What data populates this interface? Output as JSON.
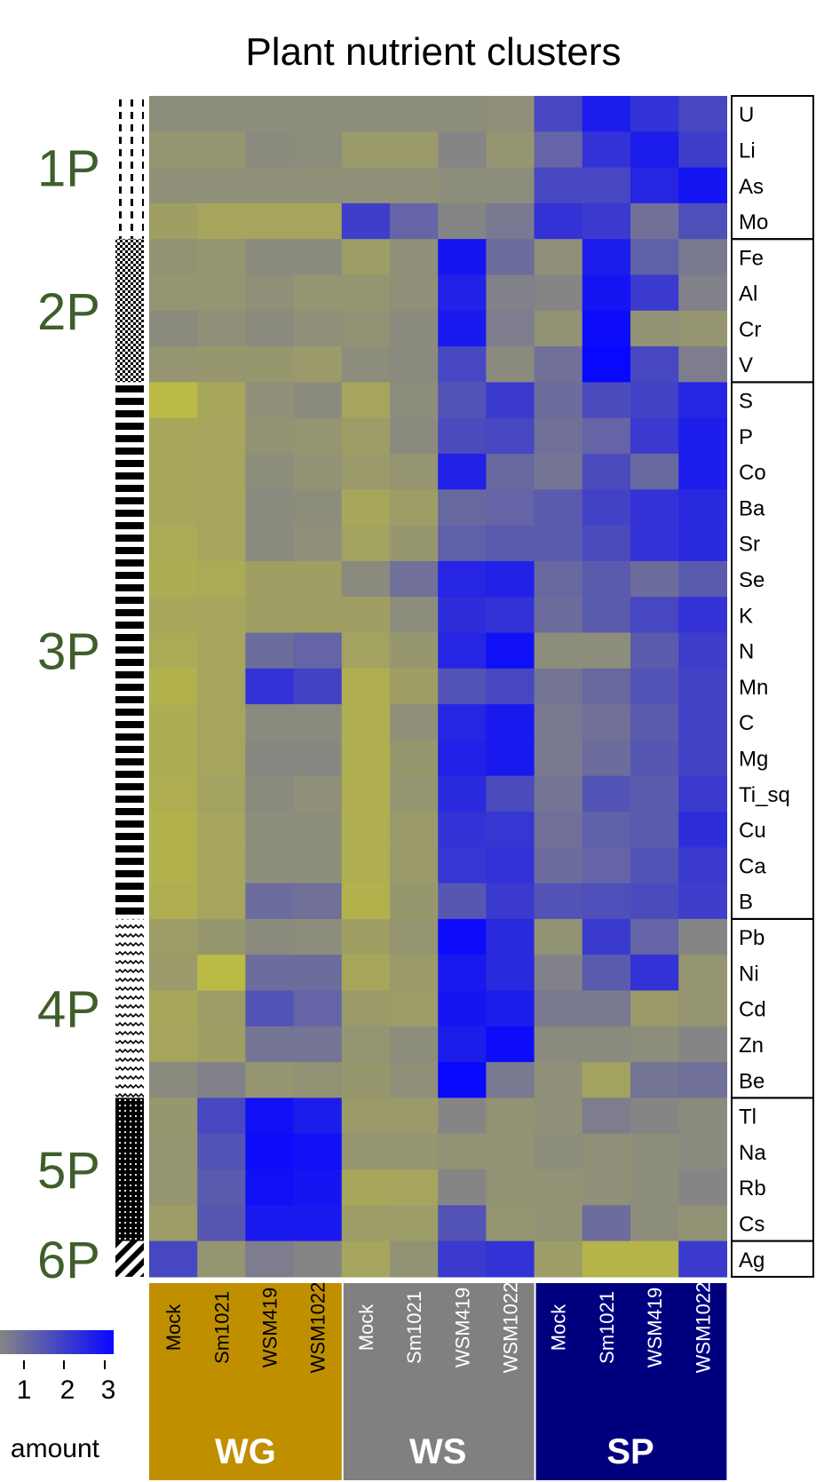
{
  "chart_data": {
    "type": "heatmap",
    "title": "Plant nutrient clusters",
    "rows": [
      "U",
      "Li",
      "As",
      "Mo",
      "Fe",
      "Al",
      "Cr",
      "V",
      "S",
      "P",
      "Co",
      "Ba",
      "Sr",
      "Se",
      "K",
      "N",
      "Mn",
      "C",
      "Mg",
      "Ti_sq",
      "Cu",
      "Ca",
      "B",
      "Pb",
      "Ni",
      "Cd",
      "Zn",
      "Be",
      "Tl",
      "Na",
      "Rb",
      "Cs",
      "Ag"
    ],
    "columns": [
      "Mock",
      "Sm1021",
      "WSM419",
      "WSM1022",
      "Mock",
      "Sm1021",
      "WSM419",
      "WSM1022",
      "Mock",
      "Sm1021",
      "WSM419",
      "WSM1022"
    ],
    "column_groups": [
      {
        "name": "WG",
        "span": 4,
        "color": "#bf8f00"
      },
      {
        "name": "WS",
        "span": 4,
        "color": "#808080"
      },
      {
        "name": "SP",
        "span": 4,
        "color": "#00007f"
      }
    ],
    "row_clusters": [
      {
        "name": "1P",
        "rows": 4,
        "pattern": "dashed"
      },
      {
        "name": "2P",
        "rows": 4,
        "pattern": "checker"
      },
      {
        "name": "3P",
        "rows": 15,
        "pattern": "horizontal-stripes"
      },
      {
        "name": "4P",
        "rows": 5,
        "pattern": "zigzag"
      },
      {
        "name": "5P",
        "rows": 4,
        "pattern": "dots"
      },
      {
        "name": "6P",
        "rows": 1,
        "pattern": "diagonal"
      }
    ],
    "values": [
      [
        -0.3,
        -0.3,
        -0.3,
        -0.3,
        -0.3,
        -0.3,
        -0.3,
        -0.4,
        1.5,
        2.5,
        2.0,
        1.5
      ],
      [
        -0.6,
        -0.6,
        -0.2,
        -0.3,
        -0.8,
        -0.8,
        0.0,
        -0.6,
        0.8,
        2.0,
        2.5,
        1.7
      ],
      [
        -0.4,
        -0.4,
        -0.4,
        -0.4,
        -0.4,
        -0.4,
        -0.3,
        -0.3,
        1.5,
        1.5,
        2.3,
        2.7
      ],
      [
        -1.0,
        -1.2,
        -1.2,
        -1.2,
        1.7,
        0.8,
        0.0,
        0.3,
        2.0,
        1.8,
        0.5,
        1.3
      ],
      [
        -0.5,
        -0.6,
        -0.2,
        -0.2,
        -0.9,
        -0.4,
        2.7,
        0.6,
        -0.4,
        2.5,
        0.9,
        0.3
      ],
      [
        -0.6,
        -0.6,
        -0.4,
        -0.6,
        -0.6,
        -0.4,
        2.4,
        0.1,
        0.0,
        2.7,
        1.8,
        0.1
      ],
      [
        -0.2,
        -0.4,
        -0.2,
        -0.4,
        -0.5,
        -0.2,
        2.6,
        0.2,
        -0.5,
        2.9,
        -0.5,
        -0.6
      ],
      [
        -0.6,
        -0.7,
        -0.7,
        -0.8,
        -0.3,
        -0.2,
        1.5,
        -0.2,
        0.5,
        3.0,
        1.5,
        0.2
      ],
      [
        -2.0,
        -1.3,
        -0.4,
        -0.2,
        -1.2,
        -0.3,
        1.2,
        1.8,
        0.6,
        1.4,
        1.6,
        2.3
      ],
      [
        -1.3,
        -1.2,
        -0.5,
        -0.6,
        -0.9,
        -0.2,
        1.4,
        1.5,
        0.5,
        0.8,
        1.8,
        2.5
      ],
      [
        -1.3,
        -1.2,
        -0.3,
        -0.5,
        -0.8,
        -0.6,
        2.4,
        0.7,
        0.4,
        1.4,
        0.7,
        2.5
      ],
      [
        -1.3,
        -1.2,
        -0.2,
        -0.3,
        -1.3,
        -0.9,
        0.7,
        0.8,
        1.0,
        1.6,
        2.0,
        2.2
      ],
      [
        -1.4,
        -1.2,
        -0.2,
        -0.4,
        -1.1,
        -0.7,
        0.9,
        1.0,
        1.0,
        1.4,
        2.0,
        2.2
      ],
      [
        -1.5,
        -1.4,
        -1.0,
        -1.0,
        -0.2,
        0.5,
        2.3,
        2.4,
        0.7,
        1.0,
        0.6,
        1.0
      ],
      [
        -1.3,
        -1.2,
        -1.0,
        -1.0,
        -1.0,
        -0.3,
        2.1,
        2.0,
        0.6,
        1.0,
        1.5,
        2.0
      ],
      [
        -1.4,
        -1.2,
        0.6,
        0.8,
        -1.1,
        -0.7,
        2.3,
        2.8,
        -0.3,
        -0.3,
        1.0,
        1.7
      ],
      [
        -1.7,
        -1.2,
        2.0,
        1.6,
        -1.6,
        -1.0,
        1.2,
        1.5,
        0.4,
        0.7,
        1.2,
        1.6
      ],
      [
        -1.5,
        -1.2,
        -0.2,
        -0.2,
        -1.6,
        -0.4,
        2.3,
        2.6,
        0.3,
        0.5,
        1.0,
        1.6
      ],
      [
        -1.5,
        -1.2,
        -0.1,
        -0.1,
        -1.6,
        -0.7,
        2.4,
        2.6,
        0.3,
        0.6,
        1.1,
        1.6
      ],
      [
        -1.6,
        -1.1,
        -0.2,
        -0.4,
        -1.6,
        -0.6,
        2.2,
        1.4,
        0.4,
        1.2,
        1.0,
        1.8
      ],
      [
        -1.7,
        -1.2,
        -0.3,
        -0.3,
        -1.6,
        -0.8,
        2.0,
        1.9,
        0.5,
        0.9,
        1.0,
        2.1
      ],
      [
        -1.7,
        -1.2,
        -0.3,
        -0.3,
        -1.6,
        -0.8,
        1.9,
        2.0,
        0.6,
        0.8,
        1.2,
        1.8
      ],
      [
        -1.6,
        -1.2,
        0.6,
        0.5,
        -1.7,
        -0.7,
        1.1,
        1.8,
        1.2,
        1.3,
        1.4,
        1.7
      ],
      [
        -0.9,
        -0.7,
        -0.2,
        -0.3,
        -1.0,
        -0.6,
        2.9,
        2.2,
        -0.5,
        1.8,
        0.8,
        0.0
      ],
      [
        -0.8,
        -2.0,
        0.6,
        0.6,
        -1.3,
        -0.8,
        2.6,
        2.2,
        0.1,
        1.0,
        2.0,
        -0.6
      ],
      [
        -1.3,
        -0.9,
        1.2,
        0.8,
        -0.8,
        -0.9,
        2.7,
        2.5,
        0.3,
        0.3,
        -0.8,
        -0.6
      ],
      [
        -1.2,
        -1.0,
        0.4,
        0.4,
        -0.6,
        -0.3,
        2.5,
        2.9,
        -0.2,
        -0.2,
        -0.3,
        0.0
      ],
      [
        -0.2,
        0.1,
        -0.6,
        -0.5,
        -0.7,
        -0.4,
        3.5,
        0.3,
        -0.4,
        -1.1,
        0.4,
        0.5
      ],
      [
        -0.7,
        1.5,
        2.8,
        2.5,
        -0.8,
        -0.8,
        0.0,
        -0.5,
        -0.4,
        0.2,
        0.0,
        -0.2
      ],
      [
        -0.6,
        1.2,
        2.9,
        2.8,
        -0.6,
        -0.6,
        -0.5,
        -0.5,
        -0.3,
        -0.4,
        -0.3,
        -0.2
      ],
      [
        -0.6,
        1.0,
        2.8,
        2.7,
        -1.3,
        -1.2,
        0.0,
        -0.5,
        -0.5,
        -0.4,
        -0.3,
        0.0
      ],
      [
        -0.9,
        1.1,
        2.6,
        2.6,
        -0.9,
        -0.9,
        1.2,
        -0.6,
        -0.5,
        0.6,
        -0.3,
        -0.5
      ],
      [
        1.5,
        -0.6,
        0.2,
        0.0,
        -1.2,
        -0.5,
        1.8,
        2.0,
        -0.9,
        -1.8,
        -1.8,
        1.8
      ]
    ],
    "color_scale": {
      "min": -3,
      "mid": 0,
      "max": 3,
      "low_color": "#d4d423",
      "mid_color": "#858585",
      "high_color": "#0808ff"
    },
    "legend": {
      "ticks": [
        "1",
        "2",
        "3"
      ],
      "label": "amount"
    }
  }
}
